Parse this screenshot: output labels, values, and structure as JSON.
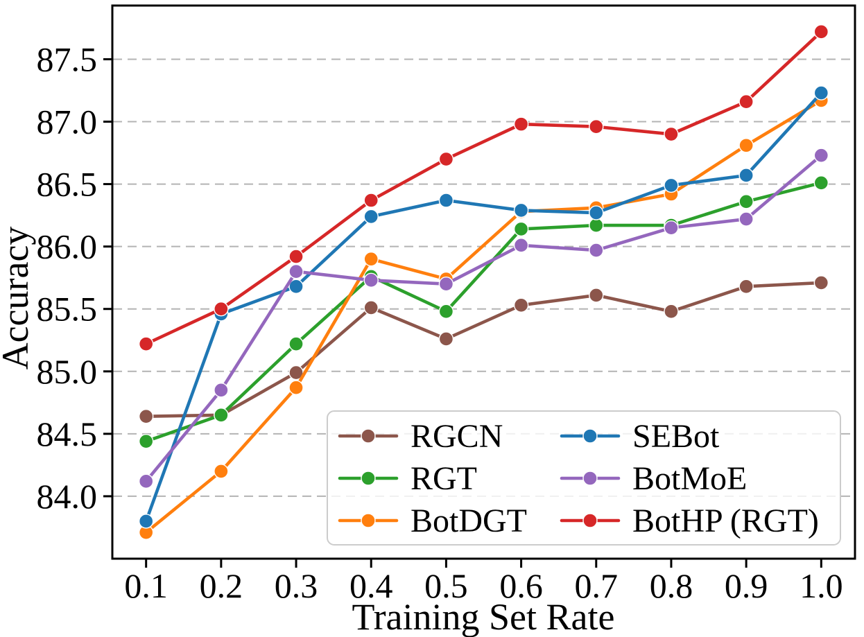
{
  "figure": {
    "background_color": "#ffffff",
    "frame_color": "#000000",
    "gridline_color": "#b3b3b3",
    "legend_border_color": "#cccccc"
  },
  "chart_data": {
    "type": "line",
    "title": "",
    "xlabel": "Training Set Rate",
    "ylabel": "Accuracy",
    "x": [
      0.1,
      0.2,
      0.3,
      0.4,
      0.5,
      0.6,
      0.7,
      0.8,
      0.9,
      1.0
    ],
    "xtick_labels": [
      "0.1",
      "0.2",
      "0.3",
      "0.4",
      "0.5",
      "0.6",
      "0.7",
      "0.8",
      "0.9",
      "1.0"
    ],
    "yticks": [
      84.0,
      84.5,
      85.0,
      85.5,
      86.0,
      86.5,
      87.0,
      87.5
    ],
    "ytick_labels": [
      "84.0",
      "84.5",
      "85.0",
      "85.5",
      "86.0",
      "86.5",
      "87.0",
      "87.5"
    ],
    "xlim": [
      0.055,
      1.045
    ],
    "ylim": [
      83.5,
      87.93
    ],
    "grid": "horizontal, dashed gray lines at each y tick",
    "legend_position": "lower center-right inside plot",
    "legend_columns": 2,
    "legend_order_note": "column-major: col1 = RGCN, RGT, BotDGT; col2 = SEBot, BotMoE, BotHP (RGT)",
    "marker": "filled circle",
    "series": [
      {
        "name": "RGCN",
        "color": "#8C564B",
        "values": [
          84.64,
          84.65,
          84.99,
          85.51,
          85.26,
          85.53,
          85.61,
          85.48,
          85.68,
          85.71
        ]
      },
      {
        "name": "RGT",
        "color": "#2CA02C",
        "values": [
          84.44,
          84.65,
          85.22,
          85.76,
          85.48,
          86.14,
          86.17,
          86.17,
          86.36,
          86.51
        ]
      },
      {
        "name": "BotDGT",
        "color": "#FF7F0E",
        "values": [
          83.71,
          84.2,
          84.87,
          85.9,
          85.74,
          86.28,
          86.31,
          86.42,
          86.81,
          87.17
        ]
      },
      {
        "name": "SEBot",
        "color": "#1F77B4",
        "values": [
          83.8,
          85.46,
          85.68,
          86.24,
          86.37,
          86.29,
          86.27,
          86.49,
          86.57,
          87.23
        ]
      },
      {
        "name": "BotMoE",
        "color": "#9467BD",
        "values": [
          84.12,
          84.85,
          85.8,
          85.73,
          85.7,
          86.01,
          85.97,
          86.15,
          86.22,
          86.73
        ]
      },
      {
        "name": "BotHP (RGT)",
        "color": "#D62728",
        "values": [
          85.22,
          85.5,
          85.92,
          86.37,
          86.7,
          86.98,
          86.96,
          86.9,
          87.16,
          87.72
        ]
      }
    ]
  }
}
